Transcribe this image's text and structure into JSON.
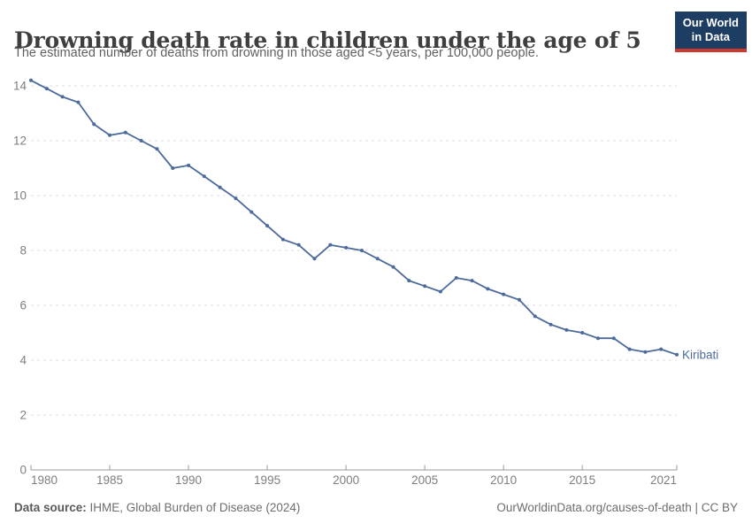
{
  "header": {
    "title": "Drowning death rate in children under the age of 5",
    "subtitle": "The estimated number of deaths from drowning in those aged <5 years, per 100,000 people.",
    "logo": {
      "line1": "Our World",
      "line2": "in Data"
    }
  },
  "chart_data": {
    "type": "line",
    "title": "Drowning death rate in children under the age of 5",
    "xlabel": "",
    "ylabel": "",
    "xlim": [
      1980,
      2021
    ],
    "ylim": [
      0,
      14.5
    ],
    "grid": "horizontal-dashed",
    "legend_position": "end-of-line-label",
    "x_ticks": [
      1980,
      1985,
      1990,
      1995,
      2000,
      2005,
      2010,
      2015,
      2021
    ],
    "y_ticks": [
      0,
      2,
      4,
      6,
      8,
      10,
      12,
      14
    ],
    "x": [
      1980,
      1981,
      1982,
      1983,
      1984,
      1985,
      1986,
      1987,
      1988,
      1989,
      1990,
      1991,
      1992,
      1993,
      1994,
      1995,
      1996,
      1997,
      1998,
      1999,
      2000,
      2001,
      2002,
      2003,
      2004,
      2005,
      2006,
      2007,
      2008,
      2009,
      2010,
      2011,
      2012,
      2013,
      2014,
      2015,
      2016,
      2017,
      2018,
      2019,
      2020,
      2021
    ],
    "series": [
      {
        "name": "Kiribati",
        "color": "#4C6A9C",
        "values": [
          14.2,
          13.9,
          13.6,
          13.4,
          12.6,
          12.2,
          12.3,
          12.0,
          11.7,
          11.0,
          11.1,
          10.7,
          10.3,
          9.9,
          9.4,
          8.9,
          8.4,
          8.2,
          7.7,
          8.2,
          8.1,
          8.0,
          7.7,
          7.4,
          6.9,
          6.7,
          6.5,
          7.0,
          6.9,
          6.6,
          6.4,
          6.2,
          5.6,
          5.3,
          5.1,
          5.0,
          4.8,
          4.8,
          4.4,
          4.3,
          4.4,
          4.2
        ]
      }
    ]
  },
  "footer": {
    "datasource_label": "Data source:",
    "datasource_text": " IHME, Global Burden of Disease (2024)",
    "credit": "OurWorldinData.org/causes-of-death | CC BY"
  },
  "colors": {
    "line": "#4C6A9C",
    "grid": "#dcdcdc",
    "axis": "#9a9a9a",
    "tick_label": "#7e7e7e",
    "logo_bg": "#1d3d63",
    "logo_red": "#cc3a2f"
  }
}
